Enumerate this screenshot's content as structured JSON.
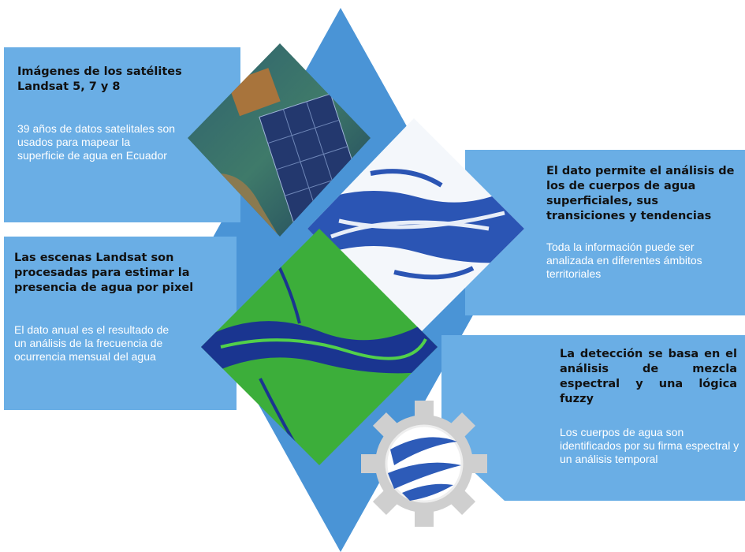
{
  "panels": [
    {
      "title": "Imágenes de los satélites Landsat 5, 7 y 8",
      "body": "39 años de datos  satelitales son usados para mapear la superficie de  agua en Ecuador"
    },
    {
      "title": "El dato permite el análisis de los de cuerpos de agua superficiales, sus transiciones y tendencias",
      "body": "Toda la información puede ser analizada en diferentes ámbitos territoriales"
    },
    {
      "title": "Las escenas Landsat son procesadas para estimar la presencia de agua por pixel",
      "body": "El dato anual es el resultado de un análisis de la frecuencia de ocurrencia mensual del agua"
    },
    {
      "title": "La detección se basa en el análisis de mezcla espectral y una lógica fuzzy",
      "body": "Los cuerpos de agua son identificados por su firma espectral y un análisis temporal"
    }
  ]
}
